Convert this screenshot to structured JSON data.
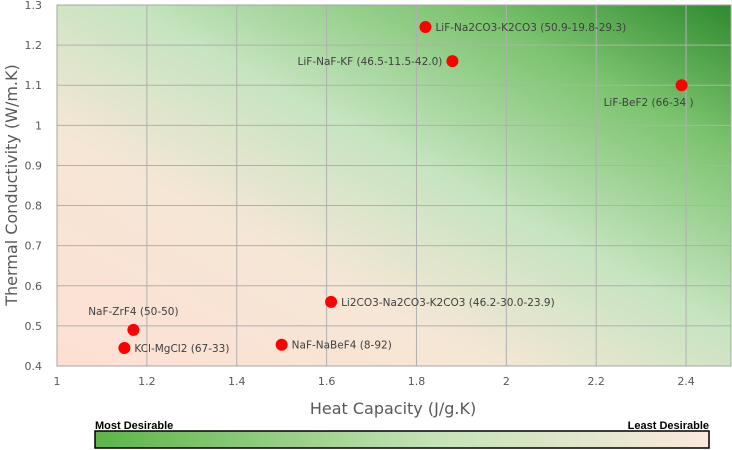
{
  "chart_data": {
    "type": "scatter",
    "xlabel": "Heat Capacity (J/g.K)",
    "ylabel": "Thermal Conductivity (W/m.K)",
    "xlim": [
      1,
      2.5
    ],
    "ylim": [
      0.4,
      1.3
    ],
    "xticks": [
      1,
      1.2,
      1.4,
      1.6,
      1.8,
      2,
      2.2,
      2.4
    ],
    "yticks": [
      0.4,
      0.5,
      0.6,
      0.7,
      0.8,
      0.9,
      1,
      1.1,
      1.2,
      1.3
    ],
    "x_tick_labels": [
      "1",
      "1.2",
      "1.4",
      "1.6",
      "1.8",
      "2",
      "2.2",
      "2.4"
    ],
    "y_tick_labels": [
      "0.4",
      "0.5",
      "0.6",
      "0.7",
      "0.8",
      "0.9",
      "1",
      "1.1",
      "1.2",
      "1.3"
    ],
    "grid": true,
    "marker_color": "#ff0000",
    "points": [
      {
        "label": "LiF-Na2CO3-K2CO3 (50.9-19.8-29.3)",
        "x": 1.82,
        "y": 1.245,
        "label_pos": "right"
      },
      {
        "label": "LiF-NaF-KF (46.5-11.5-42.0)",
        "x": 1.88,
        "y": 1.16,
        "label_pos": "left"
      },
      {
        "label": "LiF-BeF2  (66-34 )",
        "x": 2.39,
        "y": 1.1,
        "label_pos": "below-left"
      },
      {
        "label": "Li2CO3-Na2CO3-K2CO3 (46.2-30.0-23.9)",
        "x": 1.61,
        "y": 0.56,
        "label_pos": "right"
      },
      {
        "label": "NaF-ZrF4 (50-50)",
        "x": 1.17,
        "y": 0.49,
        "label_pos": "above"
      },
      {
        "label": "KCl-MgCl2 (67-33)",
        "x": 1.15,
        "y": 0.445,
        "label_pos": "right"
      },
      {
        "label": "NaF-NaBeF4 (8-92)",
        "x": 1.5,
        "y": 0.453,
        "label_pos": "right"
      }
    ],
    "legend": {
      "left_label": "Most Desirable",
      "right_label": "Least Desirable",
      "colors": [
        "#5cb547",
        "#fbe9dc"
      ]
    },
    "background_gradient": {
      "desirable_color": "#3f9a38",
      "undesirable_color": "#fde4d8"
    }
  }
}
